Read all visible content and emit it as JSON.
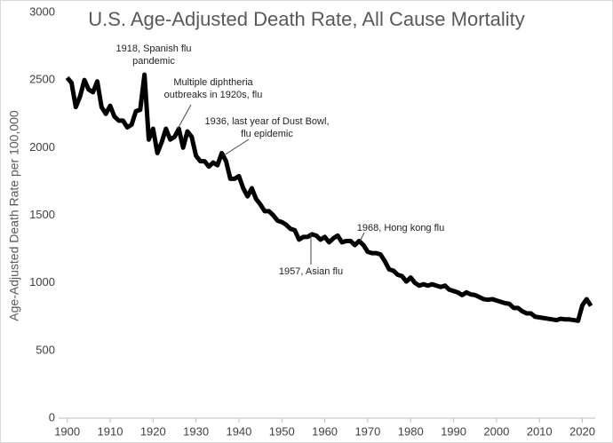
{
  "chart_data": {
    "type": "line",
    "title": "U.S. Age-Adjusted Death Rate, All Cause Mortality",
    "y_label": "Age-Adjusted Death Rate per 100,000",
    "x": [
      1900,
      1901,
      1902,
      1903,
      1904,
      1905,
      1906,
      1907,
      1908,
      1909,
      1910,
      1911,
      1912,
      1913,
      1914,
      1915,
      1916,
      1917,
      1918,
      1919,
      1920,
      1921,
      1922,
      1923,
      1924,
      1925,
      1926,
      1927,
      1928,
      1929,
      1930,
      1931,
      1932,
      1933,
      1934,
      1935,
      1936,
      1937,
      1938,
      1939,
      1940,
      1941,
      1942,
      1943,
      1944,
      1945,
      1946,
      1947,
      1948,
      1949,
      1950,
      1951,
      1952,
      1953,
      1954,
      1955,
      1956,
      1957,
      1958,
      1959,
      1960,
      1961,
      1962,
      1963,
      1964,
      1965,
      1966,
      1967,
      1968,
      1969,
      1970,
      1971,
      1972,
      1973,
      1974,
      1975,
      1976,
      1977,
      1978,
      1979,
      1980,
      1981,
      1982,
      1983,
      1984,
      1985,
      1986,
      1987,
      1988,
      1989,
      1990,
      1991,
      1992,
      1993,
      1994,
      1995,
      1996,
      1997,
      1998,
      1999,
      2000,
      2001,
      2002,
      2003,
      2004,
      2005,
      2006,
      2007,
      2008,
      2009,
      2010,
      2011,
      2012,
      2013,
      2014,
      2015,
      2016,
      2017,
      2018,
      2019,
      2020,
      2021,
      2022
    ],
    "series": [
      {
        "name": "Death rate",
        "color": "#000000",
        "values": [
          2518,
          2480,
          2300,
          2380,
          2500,
          2430,
          2410,
          2490,
          2300,
          2250,
          2310,
          2230,
          2200,
          2200,
          2150,
          2170,
          2270,
          2280,
          2540,
          2060,
          2140,
          1960,
          2040,
          2140,
          2060,
          2080,
          2140,
          2000,
          2120,
          2080,
          1940,
          1900,
          1900,
          1860,
          1890,
          1870,
          1960,
          1900,
          1770,
          1770,
          1790,
          1700,
          1640,
          1700,
          1620,
          1580,
          1530,
          1530,
          1500,
          1460,
          1450,
          1430,
          1400,
          1390,
          1320,
          1340,
          1340,
          1360,
          1350,
          1320,
          1340,
          1300,
          1330,
          1350,
          1300,
          1310,
          1310,
          1280,
          1310,
          1280,
          1230,
          1220,
          1220,
          1210,
          1160,
          1100,
          1090,
          1060,
          1050,
          1010,
          1040,
          1000,
          980,
          990,
          980,
          990,
          980,
          970,
          980,
          950,
          940,
          930,
          910,
          930,
          915,
          910,
          895,
          880,
          875,
          880,
          870,
          860,
          850,
          845,
          815,
          815,
          790,
          775,
          775,
          750,
          745,
          740,
          735,
          730,
          725,
          735,
          730,
          730,
          725,
          720,
          835,
          880,
          830
        ]
      }
    ],
    "xlim": [
      1898,
      2023
    ],
    "xticks": [
      1900,
      1910,
      1920,
      1930,
      1940,
      1950,
      1960,
      1970,
      1980,
      1990,
      2000,
      2010,
      2020
    ],
    "ylim": [
      0,
      3000
    ],
    "yticks": [
      0,
      500,
      1000,
      1500,
      2000,
      2500,
      3000
    ],
    "annotations": [
      "1918, Spanish flu pandemic",
      "Multiple diphtheria outbreaks in 1920s, flu",
      "1936, last year of Dust Bowl, flu epidemic",
      "1968, Hong kong flu",
      "1957, Asian flu"
    ]
  }
}
